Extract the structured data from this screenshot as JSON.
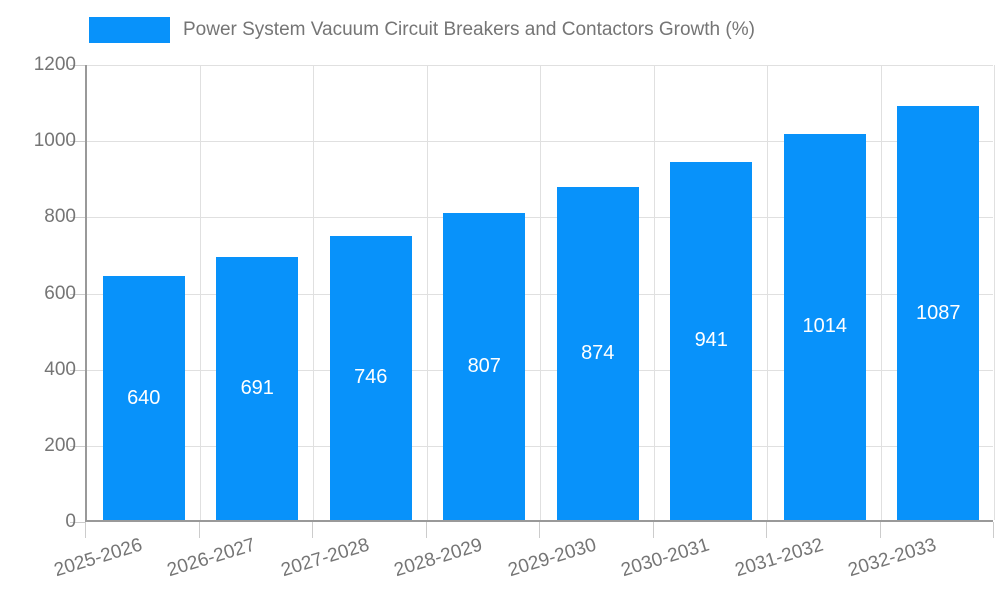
{
  "legend": {
    "label": "Power System Vacuum Circuit Breakers and Contactors Growth (%)"
  },
  "colors": {
    "bar": "#0892fa",
    "bar_label": "#ffffff",
    "axis": "#999999",
    "grid": "#e0e0e0",
    "tick": "#cccccc",
    "text": "#757575",
    "background": "#ffffff"
  },
  "chart_data": {
    "type": "bar",
    "title": "Power System Vacuum Circuit Breakers and Contactors Growth (%)",
    "categories": [
      "2025-2026",
      "2026-2027",
      "2027-2028",
      "2028-2029",
      "2029-2030",
      "2030-2031",
      "2031-2032",
      "2032-2033"
    ],
    "values": [
      640,
      691,
      746,
      807,
      874,
      941,
      1014,
      1087
    ],
    "xlabel": "",
    "ylabel": "",
    "ylim": [
      0,
      1200
    ],
    "yticks": [
      0,
      200,
      400,
      600,
      800,
      1000,
      1200
    ],
    "grid": true,
    "legend_position": "top",
    "bar_labels_visible": true
  }
}
